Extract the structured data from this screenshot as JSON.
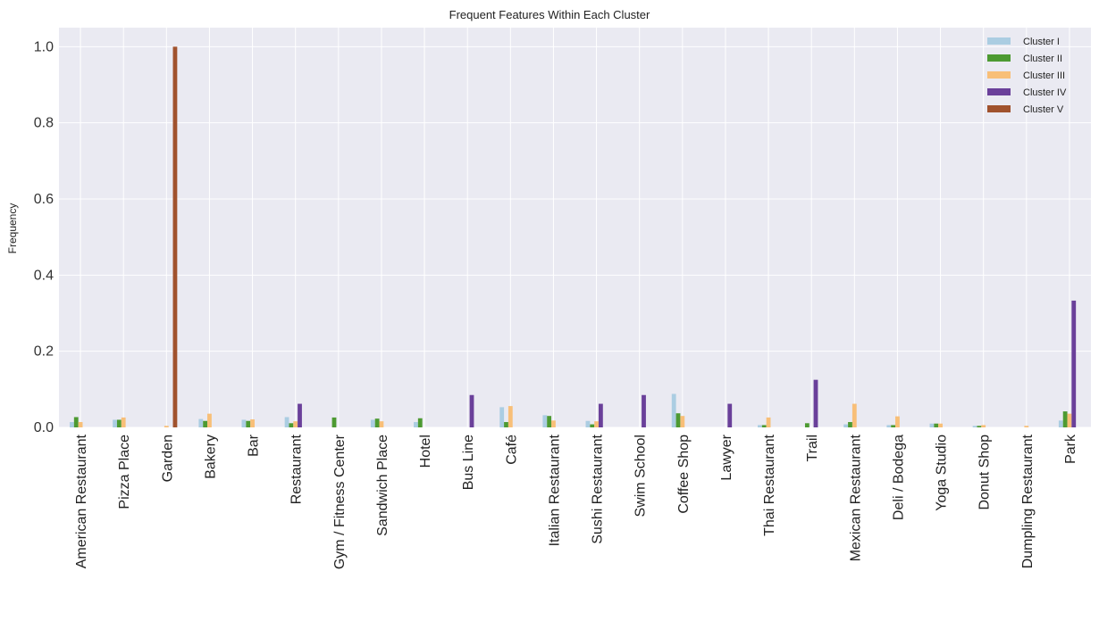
{
  "chart_data": {
    "type": "bar",
    "title": "Frequent Features Within Each Cluster",
    "xlabel": "",
    "ylabel": "Frequency",
    "ylim": [
      0,
      1.05
    ],
    "yticks": [
      "0.0",
      "0.2",
      "0.4",
      "0.6",
      "0.8",
      "1.0"
    ],
    "grid": true,
    "legend_position": "top-right",
    "categories": [
      "American Restaurant",
      "Pizza Place",
      "Garden",
      "Bakery",
      "Bar",
      "Restaurant",
      "Gym / Fitness Center",
      "Sandwich Place",
      "Hotel",
      "Bus Line",
      "Café",
      "Italian Restaurant",
      "Sushi Restaurant",
      "Swim School",
      "Coffee Shop",
      "Lawyer",
      "Thai Restaurant",
      "Trail",
      "Mexican Restaurant",
      "Deli / Bodega",
      "Yoga Studio",
      "Donut Shop",
      "Dumpling Restaurant",
      "Park"
    ],
    "series": [
      {
        "name": "Cluster I",
        "color": "#abcde2",
        "values": [
          0.014,
          0.02,
          0.0,
          0.022,
          0.02,
          0.027,
          0.0,
          0.02,
          0.014,
          0.0,
          0.053,
          0.032,
          0.017,
          0.0,
          0.088,
          0.0,
          0.006,
          0.0,
          0.008,
          0.006,
          0.01,
          0.004,
          0.0,
          0.018
        ]
      },
      {
        "name": "Cluster II",
        "color": "#4d9a32",
        "values": [
          0.027,
          0.02,
          0.0,
          0.017,
          0.017,
          0.011,
          0.026,
          0.023,
          0.024,
          0.0,
          0.014,
          0.03,
          0.008,
          0.0,
          0.037,
          0.0,
          0.006,
          0.011,
          0.014,
          0.006,
          0.01,
          0.004,
          0.0,
          0.042
        ]
      },
      {
        "name": "Cluster III",
        "color": "#f8bf78",
        "values": [
          0.014,
          0.026,
          0.004,
          0.036,
          0.021,
          0.016,
          0.0,
          0.016,
          0.0,
          0.0,
          0.056,
          0.018,
          0.016,
          0.0,
          0.03,
          0.0,
          0.026,
          0.0,
          0.062,
          0.029,
          0.01,
          0.006,
          0.004,
          0.036
        ]
      },
      {
        "name": "Cluster IV",
        "color": "#6a409a",
        "values": [
          0.0,
          0.0,
          0.0,
          0.0,
          0.0,
          0.062,
          0.0,
          0.0,
          0.0,
          0.085,
          0.0,
          0.0,
          0.062,
          0.085,
          0.0,
          0.062,
          0.0,
          0.125,
          0.0,
          0.0,
          0.0,
          0.0,
          0.0,
          0.333
        ]
      },
      {
        "name": "Cluster V",
        "color": "#a0522d",
        "values": [
          0.0,
          0.0,
          1.0,
          0.0,
          0.0,
          0.0,
          0.0,
          0.0,
          0.0,
          0.0,
          0.0,
          0.0,
          0.0,
          0.0,
          0.0,
          0.0,
          0.0,
          0.0,
          0.0,
          0.0,
          0.0,
          0.0,
          0.0,
          0.0
        ]
      }
    ]
  }
}
